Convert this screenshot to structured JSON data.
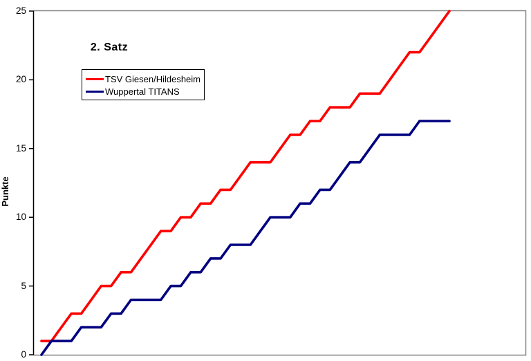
{
  "title": "2. Satz",
  "y_axis_label": "Punkte",
  "legend": {
    "items": [
      {
        "label": "TSV Giesen/Hildesheim",
        "color": "#ff0000"
      },
      {
        "label": "Wuppertal TITANS",
        "color": "#000080"
      }
    ]
  },
  "colors": {
    "axis": "#000000",
    "plot_border": "#848484",
    "background": "#ffffff",
    "text": "#000000"
  },
  "chart_data": {
    "type": "line",
    "title": "2. Satz",
    "xlabel": "",
    "ylabel": "Punkte",
    "ylim": [
      0,
      25
    ],
    "y_ticks": [
      0,
      5,
      10,
      15,
      20,
      25
    ],
    "x_description": "Rally number 1-42 (x axis unlabeled); cumulative points per team, final score 25:17",
    "final_score": "25:17",
    "grid": false,
    "legend_position": "upper-left",
    "x": [
      1,
      2,
      3,
      4,
      5,
      6,
      7,
      8,
      9,
      10,
      11,
      12,
      13,
      14,
      15,
      16,
      17,
      18,
      19,
      20,
      21,
      22,
      23,
      24,
      25,
      26,
      27,
      28,
      29,
      30,
      31,
      32,
      33,
      34,
      35,
      36,
      37,
      38,
      39,
      40,
      41,
      42
    ],
    "series": [
      {
        "name": "TSV Giesen/Hildesheim",
        "color": "#ff0000",
        "values": [
          1,
          1,
          2,
          3,
          3,
          4,
          5,
          5,
          6,
          6,
          7,
          8,
          9,
          9,
          10,
          10,
          11,
          11,
          12,
          12,
          13,
          14,
          14,
          14,
          15,
          16,
          16,
          17,
          17,
          18,
          18,
          18,
          19,
          19,
          19,
          20,
          21,
          22,
          22,
          23,
          24,
          25
        ]
      },
      {
        "name": "Wuppertal TITANS",
        "color": "#000080",
        "values": [
          0,
          1,
          1,
          1,
          2,
          2,
          2,
          3,
          3,
          4,
          4,
          4,
          4,
          5,
          5,
          6,
          6,
          7,
          7,
          8,
          8,
          8,
          9,
          10,
          10,
          10,
          11,
          11,
          12,
          12,
          13,
          14,
          14,
          15,
          16,
          16,
          16,
          16,
          17,
          17,
          17,
          17
        ]
      }
    ]
  }
}
